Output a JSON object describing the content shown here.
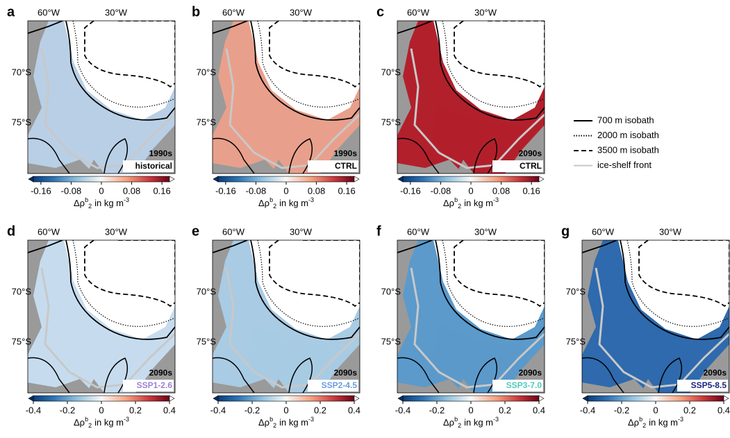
{
  "panels": [
    {
      "letter": "a",
      "decade": "1990s",
      "scenario": "historical",
      "scenario_color": "#000000",
      "shade": "#b8cfe6",
      "x_labels": [
        "60°W",
        "30°W"
      ],
      "y_labels": [
        "70°S",
        "75°S"
      ],
      "clim": [
        -0.18,
        0.18
      ],
      "cticks": [
        -0.16,
        -0.08,
        0,
        0.08,
        0.16
      ],
      "clabel": {
        "symbol": "Δρ",
        "sup": "b",
        "sub": "2",
        "unit": "in kg m",
        "unit_sup": "-3"
      }
    },
    {
      "letter": "b",
      "decade": "1990s",
      "scenario": "CTRL",
      "scenario_color": "#000000",
      "shade": "#e8a08c",
      "x_labels": [
        "60°W",
        "30°W"
      ],
      "y_labels": [
        "70°S",
        "75°S"
      ],
      "clim": [
        -0.18,
        0.18
      ],
      "cticks": [
        -0.16,
        -0.08,
        0,
        0.08,
        0.16
      ],
      "clabel": {
        "symbol": "Δρ",
        "sup": "b",
        "sub": "2",
        "unit": "in kg m",
        "unit_sup": "-3"
      }
    },
    {
      "letter": "c",
      "decade": "2090s",
      "scenario": "CTRL",
      "scenario_color": "#000000",
      "shade": "#b2202c",
      "x_labels": [
        "60°W",
        "30°W"
      ],
      "y_labels": [
        "70°S",
        "75°S"
      ],
      "clim": [
        -0.18,
        0.18
      ],
      "cticks": [
        -0.16,
        -0.08,
        0,
        0.08,
        0.16
      ],
      "clabel": {
        "symbol": "Δρ",
        "sup": "b",
        "sub": "2",
        "unit": "in kg m",
        "unit_sup": "-3"
      }
    },
    {
      "letter": "d",
      "decade": "2090s",
      "scenario": "SSP1-2.6",
      "scenario_color": "#9b7fd9",
      "shade": "#c6dcee",
      "x_labels": [
        "60°W",
        "30°W"
      ],
      "y_labels": [
        "70°S",
        "75°S"
      ],
      "clim": [
        -0.4,
        0.4
      ],
      "cticks": [
        -0.4,
        -0.2,
        0,
        0.2,
        0.4
      ],
      "clabel": {
        "symbol": "Δρ",
        "sup": "b",
        "sub": "2",
        "unit": "in kg m",
        "unit_sup": "-3"
      }
    },
    {
      "letter": "e",
      "decade": "2090s",
      "scenario": "SSP2-4.5",
      "scenario_color": "#6a9be0",
      "shade": "#a9cbe4",
      "x_labels": [
        "60°W",
        "30°W"
      ],
      "y_labels": [
        "70°S",
        "75°S"
      ],
      "clim": [
        -0.4,
        0.4
      ],
      "cticks": [
        -0.4,
        -0.2,
        0,
        0.2,
        0.4
      ],
      "clabel": {
        "symbol": "Δρ",
        "sup": "b",
        "sub": "2",
        "unit": "in kg m",
        "unit_sup": "-3"
      }
    },
    {
      "letter": "f",
      "decade": "2090s",
      "scenario": "SSP3-7.0",
      "scenario_color": "#4fc9c0",
      "shade": "#5b9acb",
      "x_labels": [
        "60°W",
        "30°W"
      ],
      "y_labels": [
        "70°S",
        "75°S"
      ],
      "clim": [
        -0.4,
        0.4
      ],
      "cticks": [
        -0.4,
        -0.2,
        0,
        0.2,
        0.4
      ],
      "clabel": {
        "symbol": "Δρ",
        "sup": "b",
        "sub": "2",
        "unit": "in kg m",
        "unit_sup": "-3"
      }
    },
    {
      "letter": "g",
      "decade": "2090s",
      "scenario": "SSP5-8.5",
      "scenario_color": "#1a237e",
      "shade": "#2e6aad",
      "x_labels": [
        "60°W",
        "30°W"
      ],
      "y_labels": [
        "70°S",
        "75°S"
      ],
      "clim": [
        -0.4,
        0.4
      ],
      "cticks": [
        -0.4,
        -0.2,
        0,
        0.2,
        0.4
      ],
      "clabel": {
        "symbol": "Δρ",
        "sup": "b",
        "sub": "2",
        "unit": "in kg m",
        "unit_sup": "-3"
      }
    }
  ],
  "legend": [
    {
      "label": "700 m isobath",
      "style": "solid",
      "color": "#000000"
    },
    {
      "label": "2000 m isobath",
      "style": "dotted",
      "color": "#000000"
    },
    {
      "label": "3500 m isobath",
      "style": "dashed",
      "color": "#000000"
    },
    {
      "label": "ice-shelf front",
      "style": "solid",
      "color": "#c8c8c8"
    }
  ]
}
